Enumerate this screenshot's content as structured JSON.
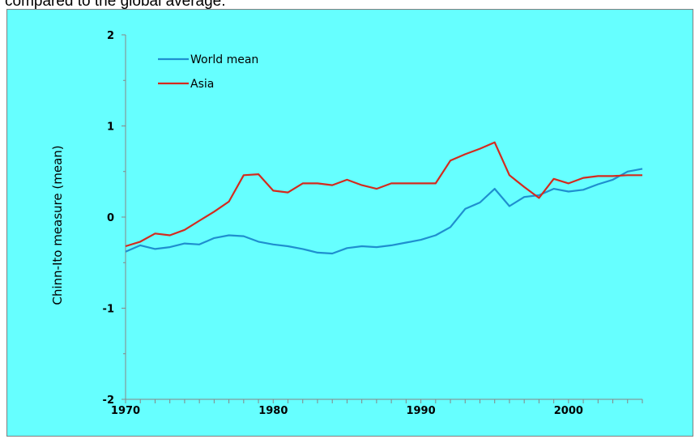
{
  "caption": "compared to the global average.",
  "chart_data": {
    "type": "line",
    "title": "",
    "xlabel": "",
    "ylabel": "Chinn-Ito measure (mean)",
    "xlim": [
      1970,
      2005
    ],
    "ylim": [
      -2,
      2
    ],
    "x_ticks": [
      "1970",
      "1980",
      "1990",
      "2000"
    ],
    "y_ticks": [
      "2",
      "1",
      "0",
      "-1",
      "-2"
    ],
    "grid": false,
    "legend_position": "top-left",
    "x": [
      1970,
      1971,
      1972,
      1973,
      1974,
      1975,
      1976,
      1977,
      1978,
      1979,
      1980,
      1981,
      1982,
      1983,
      1984,
      1985,
      1986,
      1987,
      1988,
      1989,
      1990,
      1991,
      1992,
      1993,
      1994,
      1995,
      1996,
      1997,
      1998,
      1999,
      2000,
      2001,
      2002,
      2003,
      2004,
      2005
    ],
    "series": [
      {
        "name": "World mean",
        "color": "#1f8fcf",
        "values": [
          -0.38,
          -0.31,
          -0.35,
          -0.33,
          -0.29,
          -0.3,
          -0.23,
          -0.2,
          -0.21,
          -0.27,
          -0.3,
          -0.32,
          -0.35,
          -0.39,
          -0.4,
          -0.34,
          -0.32,
          -0.33,
          -0.31,
          -0.28,
          -0.25,
          -0.2,
          -0.11,
          0.09,
          0.16,
          0.31,
          0.12,
          0.22,
          0.24,
          0.31,
          0.28,
          0.3,
          0.36,
          0.41,
          0.5,
          0.53
        ]
      },
      {
        "name": "Asia",
        "color": "#d42a1e",
        "values": [
          -0.32,
          -0.27,
          -0.18,
          -0.2,
          -0.14,
          -0.04,
          0.06,
          0.17,
          0.46,
          0.47,
          0.29,
          0.27,
          0.37,
          0.37,
          0.35,
          0.41,
          0.35,
          0.31,
          0.37,
          0.37,
          0.37,
          0.37,
          0.62,
          0.69,
          0.75,
          0.82,
          0.46,
          0.33,
          0.21,
          0.42,
          0.37,
          0.43,
          0.45,
          0.45,
          0.46,
          0.46
        ]
      }
    ]
  }
}
